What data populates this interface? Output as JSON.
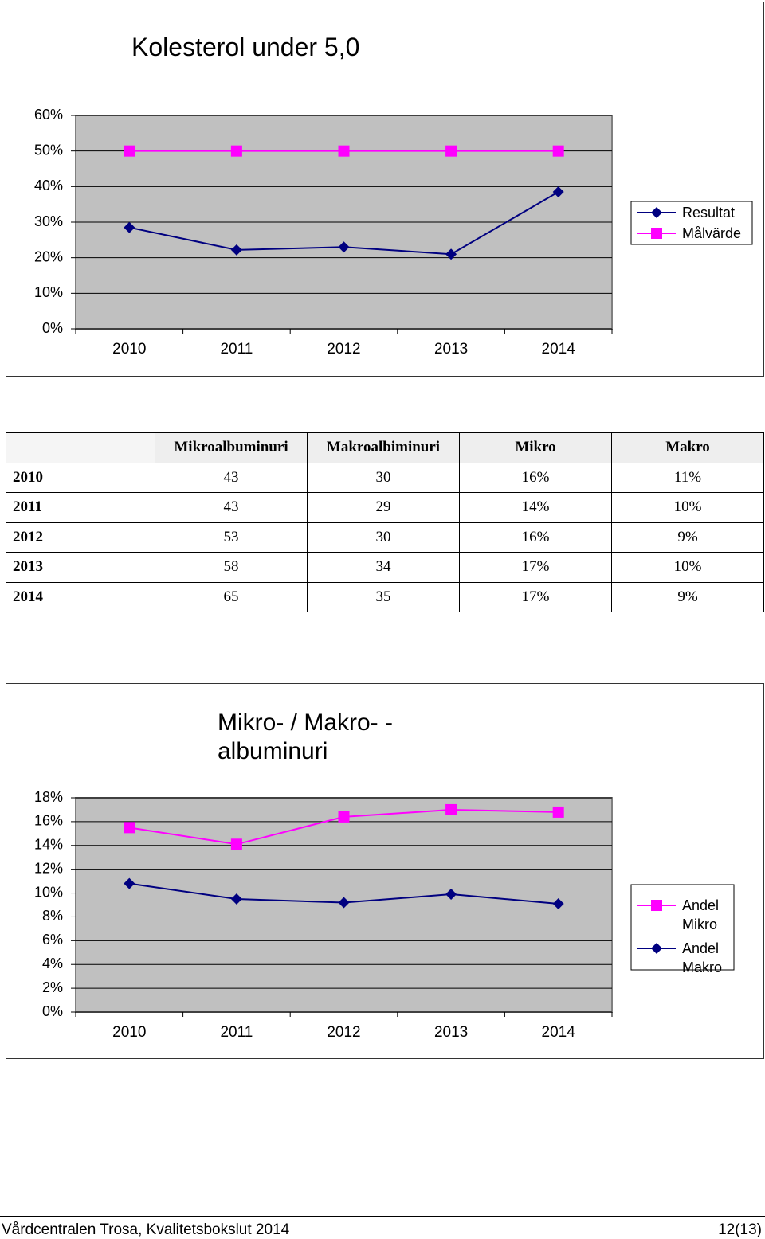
{
  "chart_data": [
    {
      "type": "line",
      "title": "Kolesterol under 5,0",
      "categories": [
        "2010",
        "2011",
        "2012",
        "2013",
        "2014"
      ],
      "series": [
        {
          "name": "Resultat",
          "color": "#000080",
          "marker": "diamond",
          "values": [
            28.5,
            22.2,
            23,
            21,
            38.5
          ]
        },
        {
          "name": "Målvärde",
          "color": "#ff00ff",
          "marker": "square",
          "values": [
            50,
            50,
            50,
            50,
            50
          ]
        }
      ],
      "ylim": [
        0,
        60
      ],
      "yticks": [
        {
          "value": 0,
          "label": "0%"
        },
        {
          "value": 10,
          "label": "10%"
        },
        {
          "value": 20,
          "label": "20%"
        },
        {
          "value": 30,
          "label": "30%"
        },
        {
          "value": 40,
          "label": "40%"
        },
        {
          "value": 50,
          "label": "50%"
        },
        {
          "value": 60,
          "label": "60%"
        }
      ],
      "grid": true,
      "legend": "right"
    },
    {
      "type": "line",
      "title": "Mikro- / Makro- - albuminuri",
      "categories": [
        "2010",
        "2011",
        "2012",
        "2013",
        "2014"
      ],
      "series": [
        {
          "name": "Andel Mikro",
          "color": "#ff00ff",
          "marker": "square",
          "values": [
            15.5,
            14.1,
            16.4,
            17,
            16.8
          ]
        },
        {
          "name": "Andel Makro",
          "color": "#000080",
          "marker": "diamond",
          "values": [
            10.8,
            9.5,
            9.2,
            9.9,
            9.1
          ]
        }
      ],
      "ylim": [
        0,
        18
      ],
      "yticks": [
        {
          "value": 0,
          "label": "0%"
        },
        {
          "value": 2,
          "label": "2%"
        },
        {
          "value": 4,
          "label": "4%"
        },
        {
          "value": 6,
          "label": "6%"
        },
        {
          "value": 8,
          "label": "8%"
        },
        {
          "value": 10,
          "label": "10%"
        },
        {
          "value": 12,
          "label": "12%"
        },
        {
          "value": 14,
          "label": "14%"
        },
        {
          "value": 16,
          "label": "16%"
        },
        {
          "value": 18,
          "label": "18%"
        }
      ],
      "grid": true,
      "legend": "right"
    }
  ],
  "table": {
    "columns": [
      "Mikroalbuminuri",
      "Makroalbiminuri",
      "Mikro",
      "Makro"
    ],
    "rows": [
      [
        "2010",
        "43",
        "30",
        "16%",
        "11%"
      ],
      [
        "2011",
        "43",
        "29",
        "14%",
        "10%"
      ],
      [
        "2012",
        "53",
        "30",
        "16%",
        "9%"
      ],
      [
        "2013",
        "58",
        "34",
        "17%",
        "10%"
      ],
      [
        "2014",
        "65",
        "35",
        "17%",
        "9%"
      ]
    ]
  },
  "footer": {
    "text": "Vårdcentralen Trosa, Kvalitetsbokslut 2014",
    "page": "12(13)"
  }
}
